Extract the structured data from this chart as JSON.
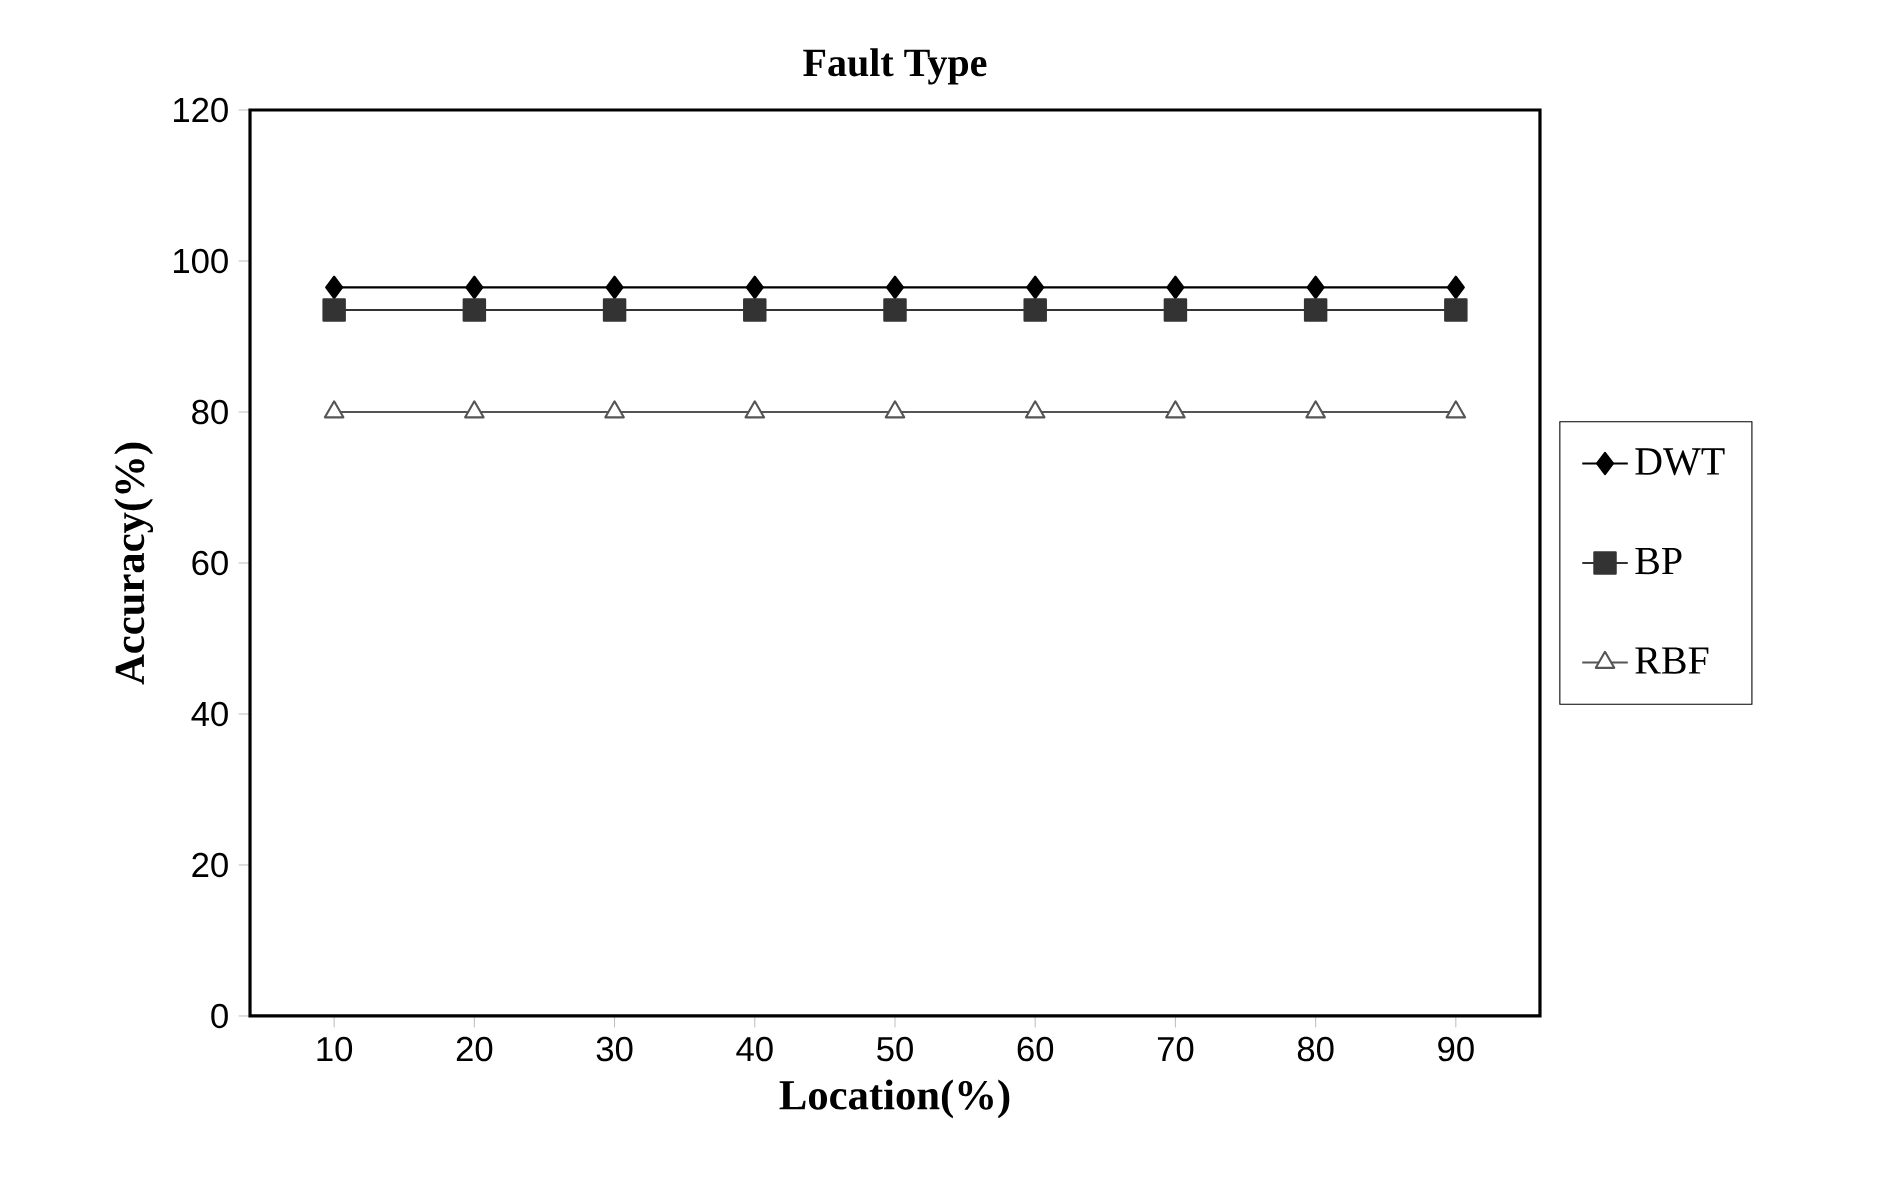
{
  "chart_data": {
    "type": "line",
    "title": "Fault Type",
    "xlabel": "Location(%)",
    "ylabel": "Accuracy(%)",
    "categories": [
      "10",
      "20",
      "30",
      "40",
      "50",
      "60",
      "70",
      "80",
      "90"
    ],
    "series": [
      {
        "name": "DWT",
        "color": "#000000",
        "marker": "diamond",
        "values": [
          96.5,
          96.5,
          96.5,
          96.5,
          96.5,
          96.5,
          96.5,
          96.5,
          96.5
        ]
      },
      {
        "name": "BP",
        "color": "#333333",
        "marker": "square",
        "values": [
          93.5,
          93.5,
          93.5,
          93.5,
          93.5,
          93.5,
          93.5,
          93.5,
          93.5
        ]
      },
      {
        "name": "RBF",
        "color": "#555555",
        "marker": "triangle",
        "values": [
          80,
          80,
          80,
          80,
          80,
          80,
          80,
          80,
          80
        ]
      }
    ],
    "ylim": [
      0,
      120
    ],
    "yticks": [
      0,
      20,
      40,
      60,
      80,
      100,
      120
    ],
    "legend": "right"
  }
}
